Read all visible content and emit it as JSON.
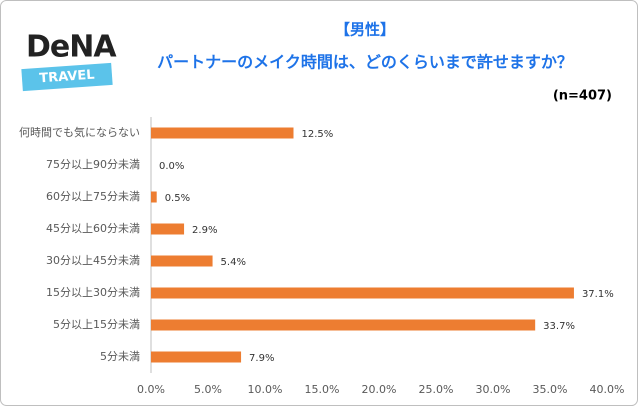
{
  "logo": {
    "brand": "DeNA",
    "sub": "TRAVEL"
  },
  "chart_data": {
    "type": "hbar",
    "title": "【男性】",
    "subtitle": "パートナーのメイク時間は、どのくらいまで許せますか？",
    "note": "(n=407)",
    "categories": [
      "何時間でも気にならない",
      "75分以上90分未満",
      "60分以上75分未満",
      "45分以上60分未満",
      "30分以上45分未満",
      "15分以上30分未満",
      "5分以上15分未満",
      "5分未満"
    ],
    "values": [
      12.5,
      0.0,
      0.5,
      2.9,
      5.4,
      37.1,
      33.7,
      7.9
    ],
    "value_labels": [
      "12.5%",
      "0.0%",
      "0.5%",
      "2.9%",
      "5.4%",
      "37.1%",
      "33.7%",
      "7.9%"
    ],
    "color": "#ed7d31",
    "xlim": [
      0,
      40
    ],
    "xticks": [
      {
        "value": 0,
        "label": "0.0%"
      },
      {
        "value": 5,
        "label": "5.0%"
      },
      {
        "value": 10,
        "label": "10.0%"
      },
      {
        "value": 15,
        "label": "15.0%"
      },
      {
        "value": 20,
        "label": "20.0%"
      },
      {
        "value": 25,
        "label": "25.0%"
      },
      {
        "value": 30,
        "label": "30.0%"
      },
      {
        "value": 35,
        "label": "35.0%"
      },
      {
        "value": 40,
        "label": "40.0%"
      }
    ],
    "grid": false
  }
}
